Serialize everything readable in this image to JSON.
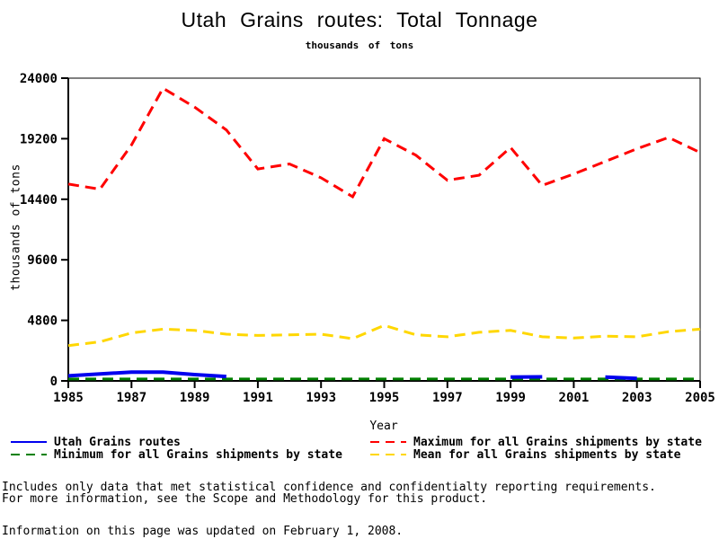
{
  "title": "Utah Grains routes: Total Tonnage",
  "subtitle": "thousands of tons",
  "y_axis_label": "thousands of tons",
  "x_axis_label": "Year",
  "legend": {
    "items": [
      {
        "id": "utah",
        "label": "Utah Grains routes",
        "color": "#0000ee",
        "dashed": false
      },
      {
        "id": "minimum",
        "label": "Minimum for all Grains shipments by state",
        "color": "#008000",
        "dashed": true
      },
      {
        "id": "maximum",
        "label": "Maximum for all Grains shipments by state",
        "color": "#ff0000",
        "dashed": true
      },
      {
        "id": "mean",
        "label": "Mean for all Grains shipments by state",
        "color": "#ffd700",
        "dashed": true
      }
    ]
  },
  "footnotes": [
    "Includes only data that met statistical confidence and confidentialty reporting requirements.",
    "For more information, see the Scope and Methodology for this product."
  ],
  "updated_note": "Information on this page was updated on February 1, 2008.",
  "colors": {
    "utah": "#0000ee",
    "minimum": "#008000",
    "maximum": "#ff0000",
    "mean": "#ffd700",
    "axis": "#000000"
  },
  "chart_data": {
    "type": "line",
    "title": "Utah Grains routes: Total Tonnage",
    "subtitle": "thousands of tons",
    "xlabel": "Year",
    "ylabel": "thousands of tons",
    "ylim": [
      0,
      24000
    ],
    "y_ticks": [
      0,
      4800,
      9600,
      14400,
      19200,
      24000
    ],
    "x_ticks": [
      1985,
      1987,
      1989,
      1991,
      1993,
      1995,
      1997,
      1999,
      2001,
      2003,
      2005
    ],
    "grid": false,
    "legend_position": "bottom",
    "x": [
      1985,
      1986,
      1987,
      1988,
      1989,
      1990,
      1991,
      1992,
      1993,
      1994,
      1995,
      1996,
      1997,
      1998,
      1999,
      2000,
      2001,
      2002,
      2003,
      2004,
      2005
    ],
    "series": [
      {
        "id": "utah",
        "name": "Utah Grains routes",
        "color": "#0000ee",
        "style": "solid",
        "values": [
          400,
          550,
          700,
          700,
          500,
          350,
          null,
          null,
          null,
          null,
          null,
          null,
          null,
          null,
          300,
          320,
          null,
          300,
          200,
          null,
          null
        ]
      },
      {
        "id": "minimum",
        "name": "Minimum for all Grains shipments by state",
        "color": "#008000",
        "style": "dashed",
        "values": [
          150,
          150,
          150,
          150,
          150,
          150,
          150,
          150,
          150,
          150,
          150,
          150,
          150,
          150,
          150,
          150,
          150,
          150,
          150,
          150,
          150
        ]
      },
      {
        "id": "maximum",
        "name": "Maximum for all Grains shipments by state",
        "color": "#ff0000",
        "style": "dashed",
        "values": [
          15600,
          15200,
          18700,
          23200,
          21700,
          19900,
          16800,
          17200,
          16100,
          14600,
          19200,
          17900,
          15900,
          16300,
          18500,
          15500,
          16400,
          17400,
          18400,
          19300,
          18100
        ]
      },
      {
        "id": "mean",
        "name": "Mean for all Grains shipments by state",
        "color": "#ffd700",
        "style": "dashed",
        "values": [
          2800,
          3100,
          3800,
          4100,
          4000,
          3700,
          3600,
          3650,
          3700,
          3350,
          4400,
          3650,
          3500,
          3850,
          4000,
          3500,
          3400,
          3550,
          3500,
          3900,
          4100
        ]
      }
    ]
  }
}
